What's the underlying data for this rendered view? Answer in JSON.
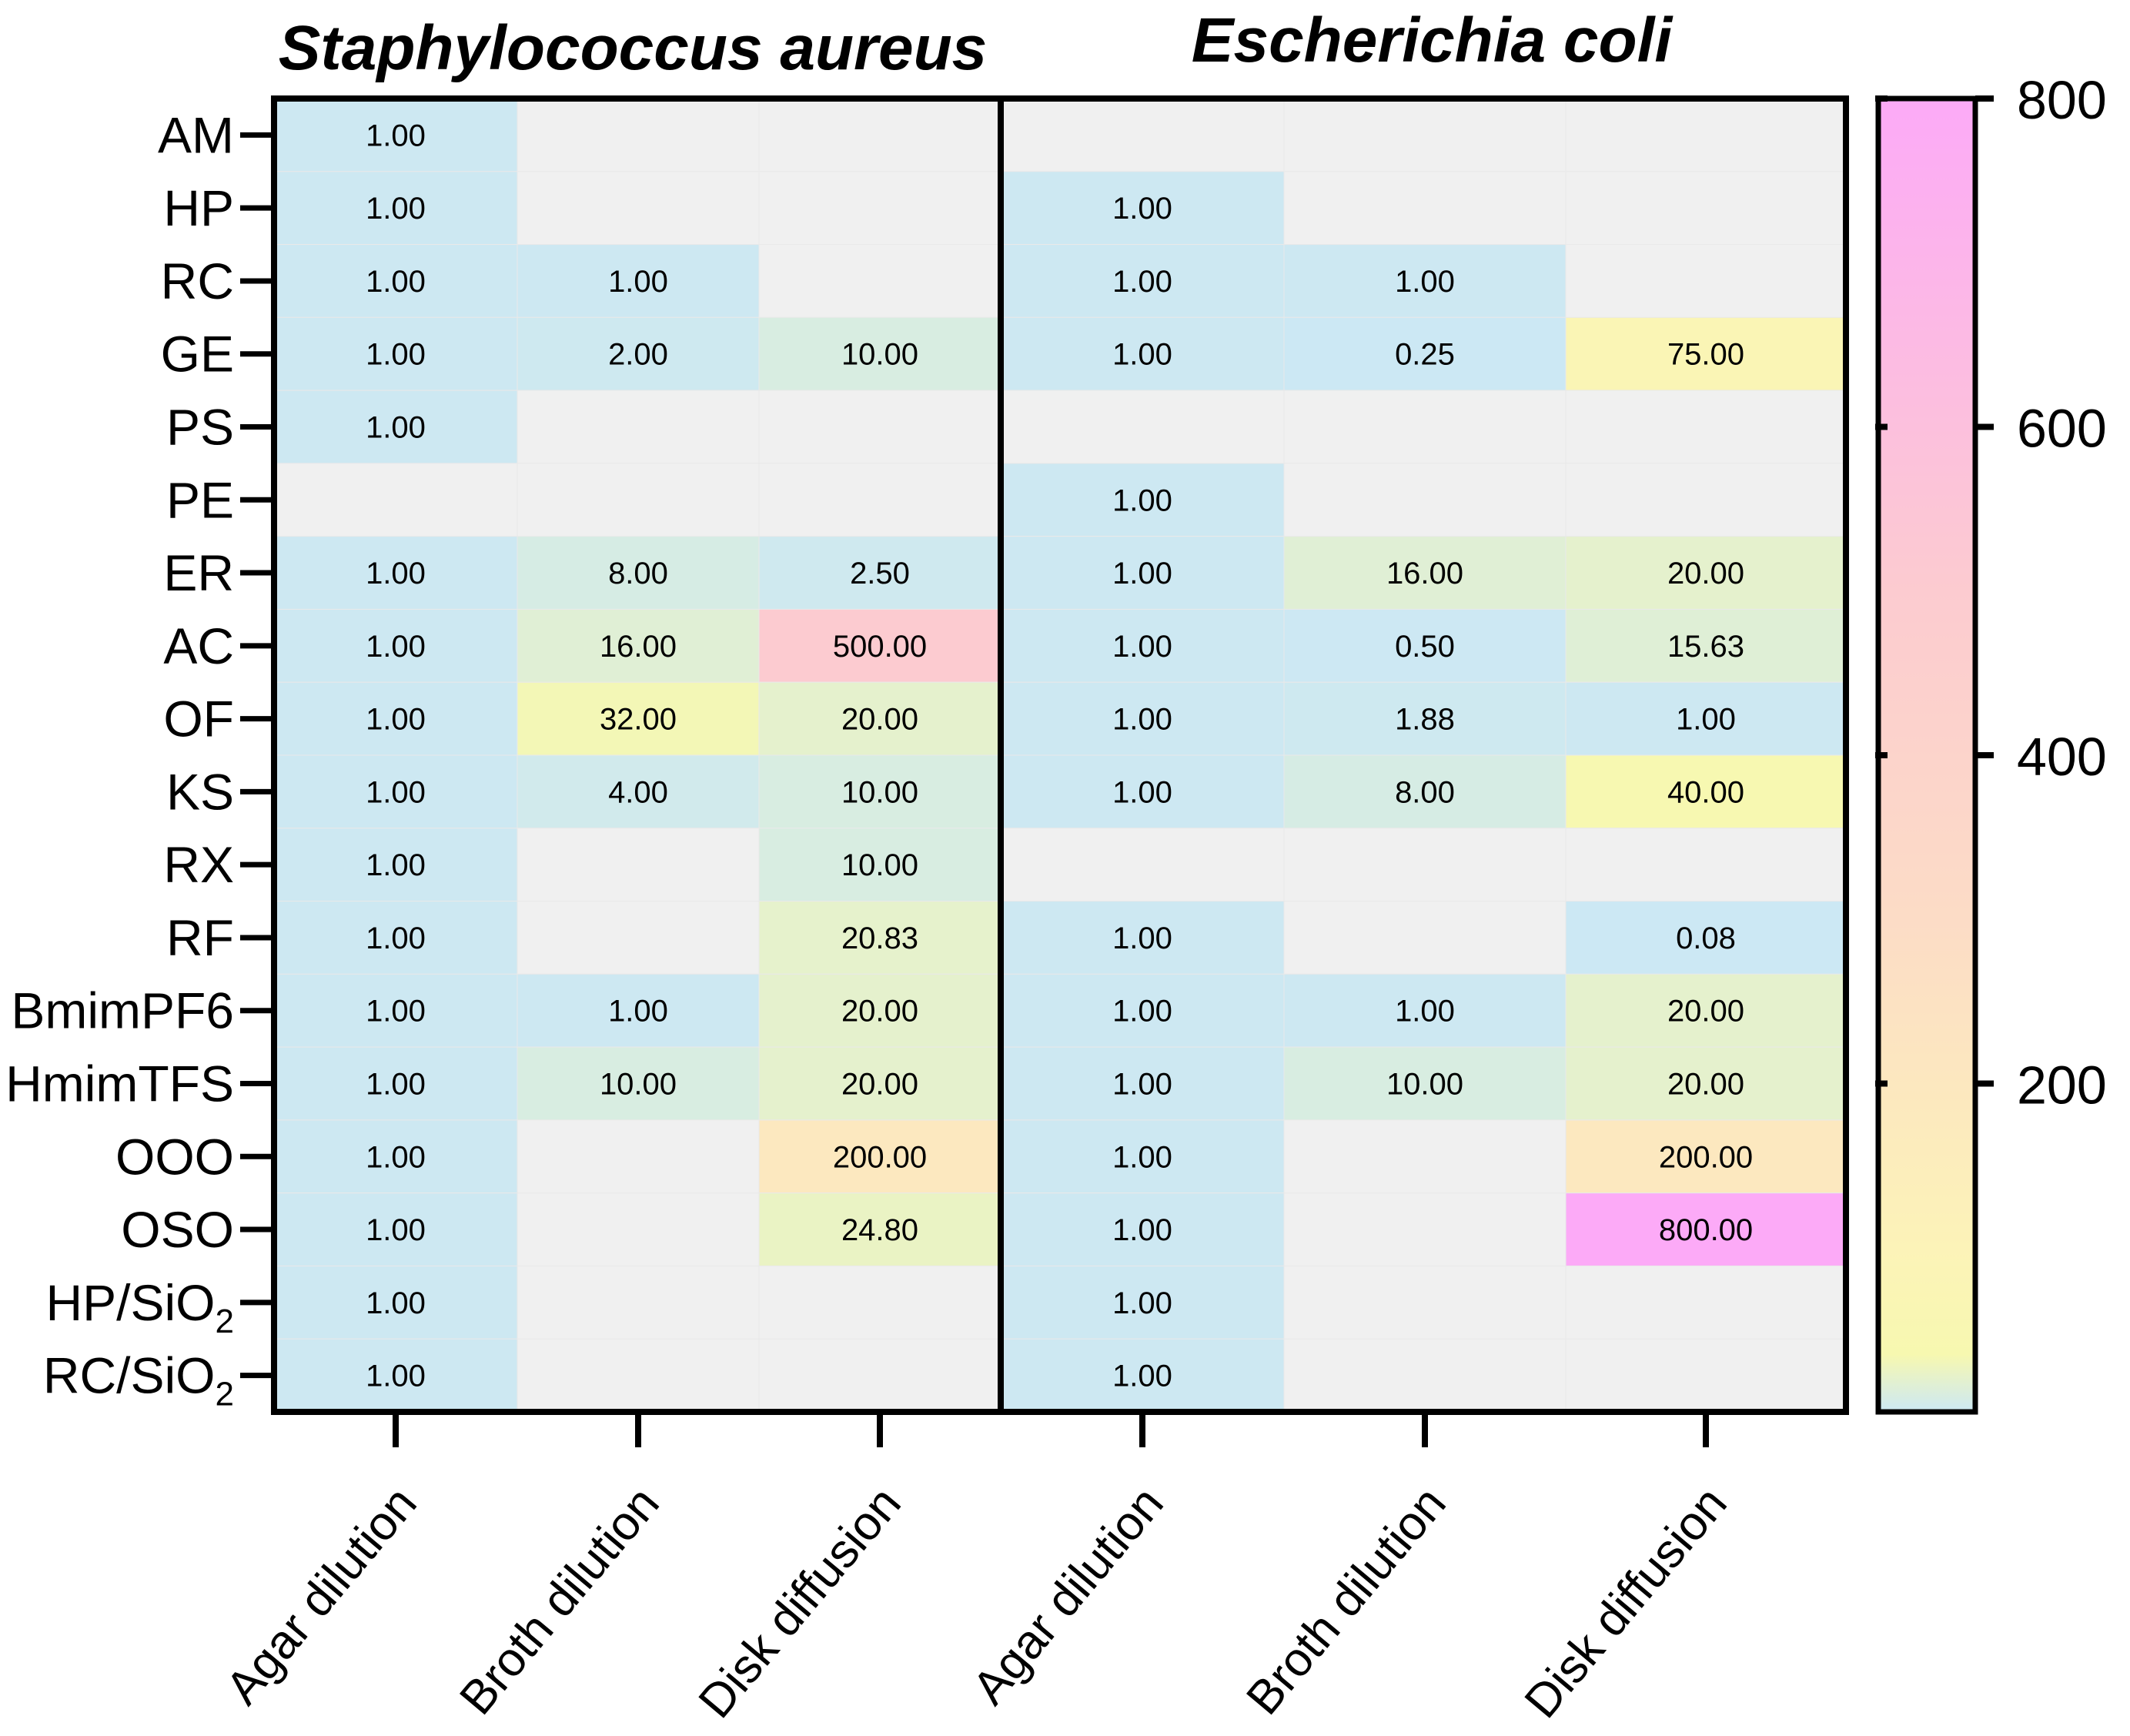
{
  "chart_data": {
    "type": "heatmap",
    "panels": [
      {
        "title": "Staphylococcus aureus",
        "columns": [
          "Agar dilution",
          "Broth dilution",
          "Disk diffusion"
        ],
        "values": [
          [
            1,
            null,
            null
          ],
          [
            1,
            null,
            null
          ],
          [
            1,
            1,
            null
          ],
          [
            1,
            2,
            10
          ],
          [
            1,
            null,
            null
          ],
          [
            null,
            null,
            null
          ],
          [
            1,
            8,
            2.5
          ],
          [
            1,
            16,
            500
          ],
          [
            1,
            32,
            20
          ],
          [
            1,
            4,
            10
          ],
          [
            1,
            null,
            10
          ],
          [
            1,
            null,
            20.83
          ],
          [
            1,
            1,
            20
          ],
          [
            1,
            10,
            20
          ],
          [
            1,
            null,
            200
          ],
          [
            1,
            null,
            24.8
          ],
          [
            1,
            null,
            null
          ],
          [
            1,
            null,
            null
          ]
        ],
        "labels": [
          [
            "1.00",
            "",
            ""
          ],
          [
            "1.00",
            "",
            ""
          ],
          [
            "1.00",
            "1.00",
            ""
          ],
          [
            "1.00",
            "2.00",
            "10.00"
          ],
          [
            "1.00",
            "",
            ""
          ],
          [
            "",
            "",
            ""
          ],
          [
            "1.00",
            "8.00",
            "2.50"
          ],
          [
            "1.00",
            "16.00",
            "500.00"
          ],
          [
            "1.00",
            "32.00",
            "20.00"
          ],
          [
            "1.00",
            "4.00",
            "10.00"
          ],
          [
            "1.00",
            "",
            "10.00"
          ],
          [
            "1.00",
            "",
            "20.83"
          ],
          [
            "1.00",
            "1.00",
            "20.00"
          ],
          [
            "1.00",
            "10.00",
            "20.00"
          ],
          [
            "1.00",
            "",
            "200.00"
          ],
          [
            "1.00",
            "",
            "24.80"
          ],
          [
            "1.00",
            "",
            ""
          ],
          [
            "1.00",
            "",
            ""
          ]
        ]
      },
      {
        "title": "Escherichia coli",
        "columns": [
          "Agar dilution",
          "Broth dilution",
          "Disk diffusion"
        ],
        "values": [
          [
            null,
            null,
            null
          ],
          [
            1,
            null,
            null
          ],
          [
            1,
            1,
            null
          ],
          [
            1,
            0.25,
            75
          ],
          [
            null,
            null,
            null
          ],
          [
            1,
            null,
            null
          ],
          [
            1,
            16,
            20
          ],
          [
            1,
            0.5,
            15.63
          ],
          [
            1,
            1.88,
            1
          ],
          [
            1,
            8,
            40
          ],
          [
            null,
            null,
            null
          ],
          [
            1,
            null,
            0.08
          ],
          [
            1,
            1,
            20
          ],
          [
            1,
            10,
            20
          ],
          [
            1,
            null,
            200
          ],
          [
            1,
            null,
            800
          ],
          [
            1,
            null,
            null
          ],
          [
            1,
            null,
            null
          ]
        ],
        "labels": [
          [
            "",
            "",
            ""
          ],
          [
            "1.00",
            "",
            ""
          ],
          [
            "1.00",
            "1.00",
            ""
          ],
          [
            "1.00",
            "0.25",
            "75.00"
          ],
          [
            "",
            "",
            ""
          ],
          [
            "1.00",
            "",
            ""
          ],
          [
            "1.00",
            "16.00",
            "20.00"
          ],
          [
            "1.00",
            "0.50",
            "15.63"
          ],
          [
            "1.00",
            "1.88",
            "1.00"
          ],
          [
            "1.00",
            "8.00",
            "40.00"
          ],
          [
            "",
            "",
            ""
          ],
          [
            "1.00",
            "",
            "0.08"
          ],
          [
            "1.00",
            "1.00",
            "20.00"
          ],
          [
            "1.00",
            "10.00",
            "20.00"
          ],
          [
            "1.00",
            "",
            "200.00"
          ],
          [
            "1.00",
            "",
            "800.00"
          ],
          [
            "1.00",
            "",
            ""
          ],
          [
            "1.00",
            "",
            ""
          ]
        ]
      }
    ],
    "rows": [
      "AM",
      "HP",
      "RC",
      "GE",
      "PS",
      "PE",
      "ER",
      "AC",
      "OF",
      "KS",
      "RX",
      "RF",
      "BmimPF6",
      "HmimTFS",
      "OOO",
      "OSO",
      "HP/SiO2",
      "RC/SiO2"
    ],
    "row_label_parts": [
      {
        "base": "AM",
        "sub": ""
      },
      {
        "base": "HP",
        "sub": ""
      },
      {
        "base": "RC",
        "sub": ""
      },
      {
        "base": "GE",
        "sub": ""
      },
      {
        "base": "PS",
        "sub": ""
      },
      {
        "base": "PE",
        "sub": ""
      },
      {
        "base": "ER",
        "sub": ""
      },
      {
        "base": "AC",
        "sub": ""
      },
      {
        "base": "OF",
        "sub": ""
      },
      {
        "base": "KS",
        "sub": ""
      },
      {
        "base": "RX",
        "sub": ""
      },
      {
        "base": "RF",
        "sub": ""
      },
      {
        "base": "BmimPF6",
        "sub": ""
      },
      {
        "base": "HmimTFS",
        "sub": ""
      },
      {
        "base": "OOO",
        "sub": ""
      },
      {
        "base": "OSO",
        "sub": ""
      },
      {
        "base": "HP/SiO",
        "sub": "2"
      },
      {
        "base": "RC/SiO",
        "sub": "2"
      }
    ],
    "colorbar": {
      "range": [
        0,
        800
      ],
      "ticks": [
        200,
        400,
        600,
        800
      ],
      "tick_labels": [
        "200",
        "400",
        "600",
        "800"
      ],
      "stops": [
        {
          "value": 0,
          "color": "#cce8f4"
        },
        {
          "value": 35,
          "color": "#f7f8b0"
        },
        {
          "value": 100,
          "color": "#fcf3b8"
        },
        {
          "value": 300,
          "color": "#fcdcc6"
        },
        {
          "value": 500,
          "color": "#fccbd0"
        },
        {
          "value": 800,
          "color": "#fcaaf7"
        }
      ],
      "missing_color": "#f0f0f0"
    }
  }
}
